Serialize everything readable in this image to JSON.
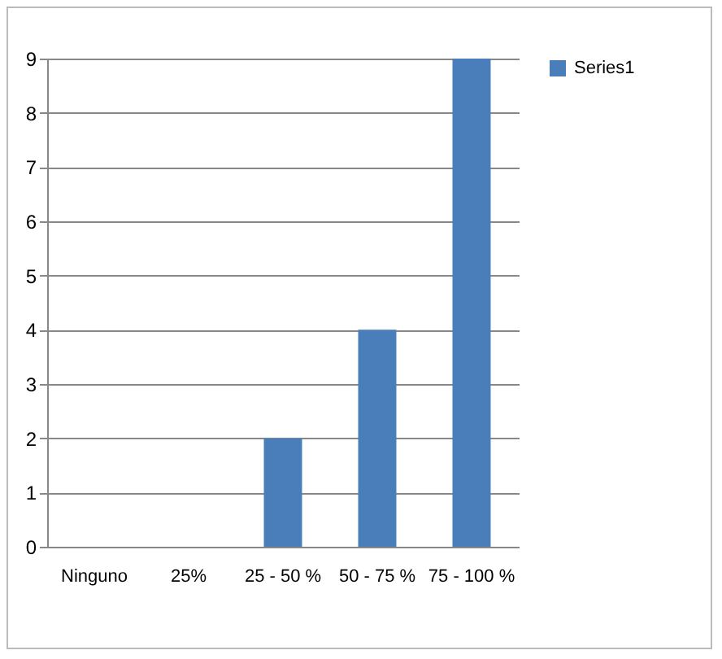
{
  "chart_data": {
    "type": "bar",
    "categories": [
      "Ninguno",
      "25%",
      "25 - 50 %",
      "50 - 75 %",
      "75 - 100 %"
    ],
    "series": [
      {
        "name": "Series1",
        "color": "#4a7ebb",
        "values": [
          0,
          0,
          2,
          4,
          9
        ]
      }
    ],
    "ylim": [
      0,
      9
    ],
    "yticks": [
      0,
      1,
      2,
      3,
      4,
      5,
      6,
      7,
      8,
      9
    ],
    "grid": "y",
    "legend": "right"
  }
}
